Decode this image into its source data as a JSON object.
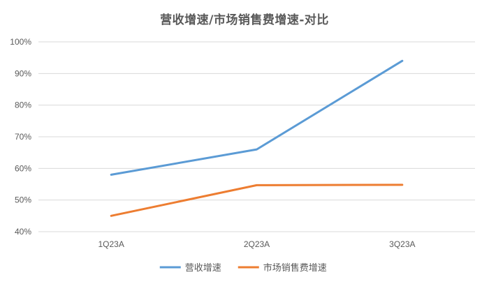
{
  "chart_data": {
    "type": "line",
    "title": "营收增速/市场销售费增速-对比",
    "categories": [
      "1Q23A",
      "2Q23A",
      "3Q23A"
    ],
    "series": [
      {
        "name": "营收增速",
        "values": [
          58,
          66,
          94
        ],
        "color": "#5B9BD5"
      },
      {
        "name": "市场销售费增速",
        "values": [
          45,
          54.7,
          54.8
        ],
        "color": "#ED7D31"
      }
    ],
    "ylim": [
      40,
      100
    ],
    "y_ticks": [
      "40%",
      "50%",
      "60%",
      "70%",
      "80%",
      "90%",
      "100%"
    ],
    "grid": true,
    "legend_position": "bottom",
    "xlabel": "",
    "ylabel": ""
  }
}
